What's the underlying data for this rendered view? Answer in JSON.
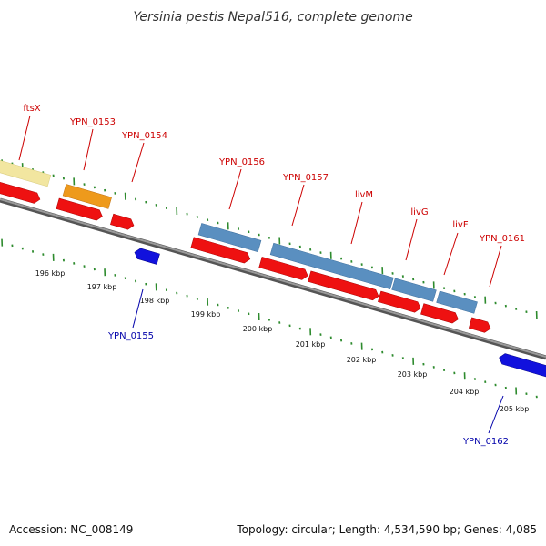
{
  "title": "Yersinia pestis Nepal516, complete genome",
  "footer": {
    "accession": "Accession: NC_008149",
    "topology": "Topology: circular; Length: 4,534,590 bp; Genes: 4,085"
  },
  "colors": {
    "forward_cds": "#ee1111",
    "reverse_cds": "#1111dd",
    "rna": "#5a8fc0",
    "orange_feature": "#ee9a1c",
    "yellow_feature": "#f2e6a0",
    "backbone": "#888888",
    "tick": "#2e8b2e",
    "label_forward": "#cc0000",
    "label_reverse": "#0000aa"
  },
  "scale_labels": [
    "196 kbp",
    "197 kbp",
    "198 kbp",
    "199 kbp",
    "200 kbp",
    "201 kbp",
    "202 kbp",
    "203 kbp",
    "204 kbp",
    "205 kbp"
  ],
  "gene_labels": [
    {
      "text": "ftsX",
      "strand": "forward"
    },
    {
      "text": "YPN_0153",
      "strand": "forward"
    },
    {
      "text": "YPN_0154",
      "strand": "forward"
    },
    {
      "text": "YPN_0156",
      "strand": "forward"
    },
    {
      "text": "YPN_0157",
      "strand": "forward"
    },
    {
      "text": "livM",
      "strand": "forward"
    },
    {
      "text": "livG",
      "strand": "forward"
    },
    {
      "text": "livF",
      "strand": "forward"
    },
    {
      "text": "YPN_0161",
      "strand": "forward"
    },
    {
      "text": "YPN_0155",
      "strand": "reverse"
    },
    {
      "text": "YPN_0162",
      "strand": "reverse"
    }
  ]
}
